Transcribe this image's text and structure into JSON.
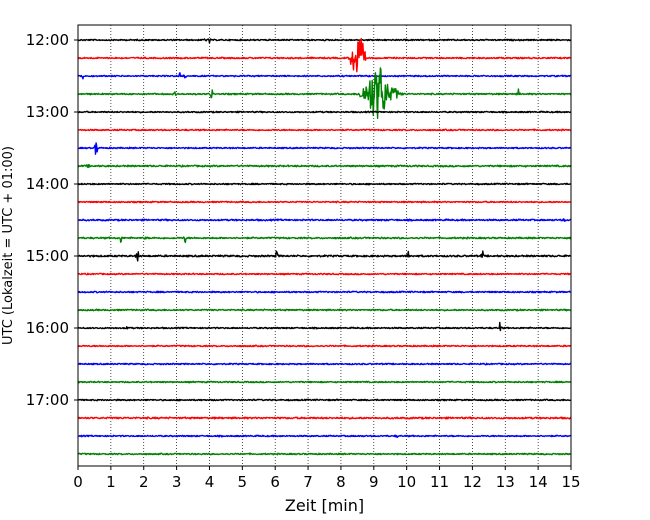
{
  "chart_data": {
    "type": "line",
    "chart_kind": "helicorder seismogram",
    "xlabel": "Zeit  [min]",
    "ylabel": "UTC (Lokalzeit = UTC + 01:00)",
    "xlim": [
      0,
      15
    ],
    "x_ticks": [
      0,
      1,
      2,
      3,
      4,
      5,
      6,
      7,
      8,
      9,
      10,
      11,
      12,
      13,
      14,
      15
    ],
    "x_tick_labels": [
      "0",
      "1",
      "2",
      "3",
      "4",
      "5",
      "6",
      "7",
      "8",
      "9",
      "10",
      "11",
      "12",
      "13",
      "14",
      "15"
    ],
    "y_ticks": [
      "12:00",
      "13:00",
      "14:00",
      "15:00",
      "16:00",
      "17:00"
    ],
    "grid": "vertical dotted lines at each minute",
    "rows_per_hour": 4,
    "first_row": "12:00",
    "last_row": "17:45",
    "row_colors": [
      "#000000",
      "#ff0000",
      "#0000ff",
      "#008000"
    ],
    "traces": [
      {
        "row": "12:00",
        "noise": 0.3,
        "events": [
          {
            "t": 3.85,
            "amp": 0.45
          },
          {
            "t": 4.0,
            "amp": 0.35
          }
        ]
      },
      {
        "row": "12:15",
        "noise": 0.32,
        "events": [
          {
            "t": 8.45,
            "amp": 1.35,
            "dur": 0.25
          },
          {
            "t": 8.65,
            "amp": 0.8,
            "dur": 0.2
          }
        ]
      },
      {
        "row": "12:30",
        "noise": 0.3,
        "events": [
          {
            "t": 0.15,
            "amp": 0.5
          },
          {
            "t": 3.1,
            "amp": 0.45
          },
          {
            "t": 3.25,
            "amp": 0.4
          }
        ]
      },
      {
        "row": "12:45",
        "noise": 0.32,
        "events": [
          {
            "t": 2.95,
            "amp": 0.35
          },
          {
            "t": 4.05,
            "amp": 0.55
          },
          {
            "t": 8.9,
            "amp": 1.0,
            "dur": 0.5
          },
          {
            "t": 9.2,
            "amp": 1.2,
            "dur": 0.35
          },
          {
            "t": 9.6,
            "amp": 0.55,
            "dur": 0.4
          },
          {
            "t": 13.4,
            "amp": 0.35
          }
        ]
      },
      {
        "row": "13:00",
        "noise": 0.3,
        "events": []
      },
      {
        "row": "13:15",
        "noise": 0.3,
        "events": []
      },
      {
        "row": "13:30",
        "noise": 0.3,
        "events": [
          {
            "t": 0.55,
            "amp": 0.75
          }
        ]
      },
      {
        "row": "13:45",
        "noise": 0.35,
        "events": [
          {
            "t": 0.3,
            "amp": 0.4
          }
        ]
      },
      {
        "row": "14:00",
        "noise": 0.3,
        "events": []
      },
      {
        "row": "14:15",
        "noise": 0.3,
        "events": []
      },
      {
        "row": "14:30",
        "noise": 0.35,
        "events": [
          {
            "t": 14.8,
            "amp": 0.35
          }
        ]
      },
      {
        "row": "14:45",
        "noise": 0.35,
        "events": [
          {
            "t": 1.3,
            "amp": 0.35
          },
          {
            "t": 2.05,
            "amp": 0.35
          },
          {
            "t": 3.25,
            "amp": 0.5
          }
        ]
      },
      {
        "row": "15:00",
        "noise": 0.38,
        "events": [
          {
            "t": 1.8,
            "amp": 0.55
          },
          {
            "t": 6.05,
            "amp": 0.5
          },
          {
            "t": 10.05,
            "amp": 0.45
          },
          {
            "t": 12.3,
            "amp": 0.45
          }
        ]
      },
      {
        "row": "15:15",
        "noise": 0.3,
        "events": []
      },
      {
        "row": "15:30",
        "noise": 0.32,
        "events": []
      },
      {
        "row": "15:45",
        "noise": 0.32,
        "events": []
      },
      {
        "row": "16:00",
        "noise": 0.3,
        "events": [
          {
            "t": 1.5,
            "amp": 0.35
          },
          {
            "t": 12.85,
            "amp": 0.6
          }
        ]
      },
      {
        "row": "16:15",
        "noise": 0.3,
        "events": []
      },
      {
        "row": "16:30",
        "noise": 0.3,
        "events": []
      },
      {
        "row": "16:45",
        "noise": 0.3,
        "events": []
      },
      {
        "row": "17:00",
        "noise": 0.3,
        "events": []
      },
      {
        "row": "17:15",
        "noise": 0.38,
        "events": []
      },
      {
        "row": "17:30",
        "noise": 0.3,
        "events": [
          {
            "t": 9.7,
            "amp": 0.35
          }
        ]
      },
      {
        "row": "17:45",
        "noise": 0.3,
        "events": []
      }
    ]
  }
}
